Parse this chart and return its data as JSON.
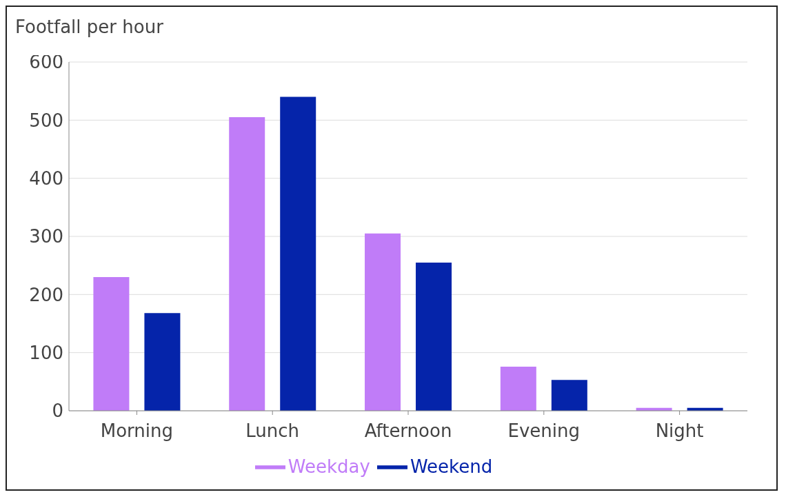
{
  "chart_data": {
    "type": "bar",
    "ylabel": "Footfall per hour",
    "categories": [
      "Morning",
      "Lunch",
      "Afternoon",
      "Evening",
      "Night"
    ],
    "series": [
      {
        "name": "Weekday",
        "color": "#c07cf8",
        "values": [
          230,
          505,
          305,
          76,
          5
        ]
      },
      {
        "name": "Weekend",
        "color": "#0524aa",
        "values": [
          168,
          540,
          255,
          53,
          5
        ]
      }
    ],
    "ylim": [
      0,
      600
    ],
    "yticks": [
      0,
      100,
      200,
      300,
      400,
      500,
      600
    ],
    "grid": "y",
    "legend": "bottom"
  }
}
